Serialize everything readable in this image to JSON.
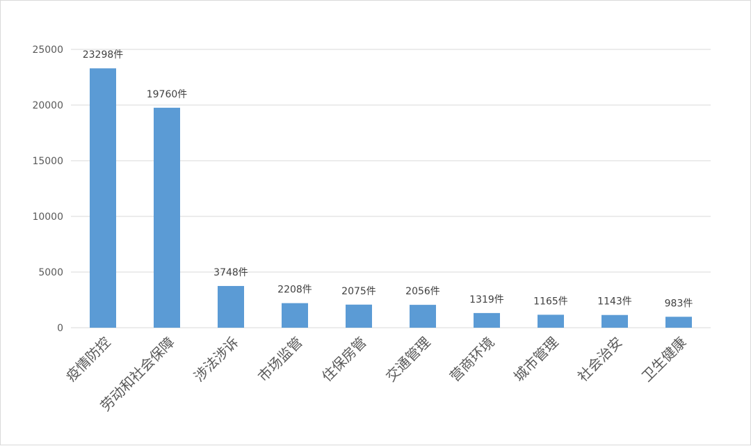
{
  "chart_data": {
    "type": "bar",
    "title": "",
    "xlabel": "",
    "ylabel": "",
    "categories": [
      "疫情防控",
      "劳动和社会保障",
      "涉法涉诉",
      "市场监管",
      "住保房管",
      "交通管理",
      "营商环境",
      "城市管理",
      "社会治安",
      "卫生健康"
    ],
    "values": [
      23298,
      19760,
      3748,
      2208,
      2075,
      2056,
      1319,
      1165,
      1143,
      983
    ],
    "data_labels": [
      "23298件",
      "19760件",
      "3748件",
      "2208件",
      "2075件",
      "2056件",
      "1319件",
      "1165件",
      "1143件",
      "983件"
    ],
    "ylim": [
      0,
      25000
    ],
    "yticks": [
      0,
      5000,
      10000,
      15000,
      20000,
      25000
    ],
    "grid": true,
    "legend": "none",
    "colors": {
      "bar": "#5b9bd5",
      "grid": "#d9d9d9",
      "text": "#595959"
    }
  }
}
